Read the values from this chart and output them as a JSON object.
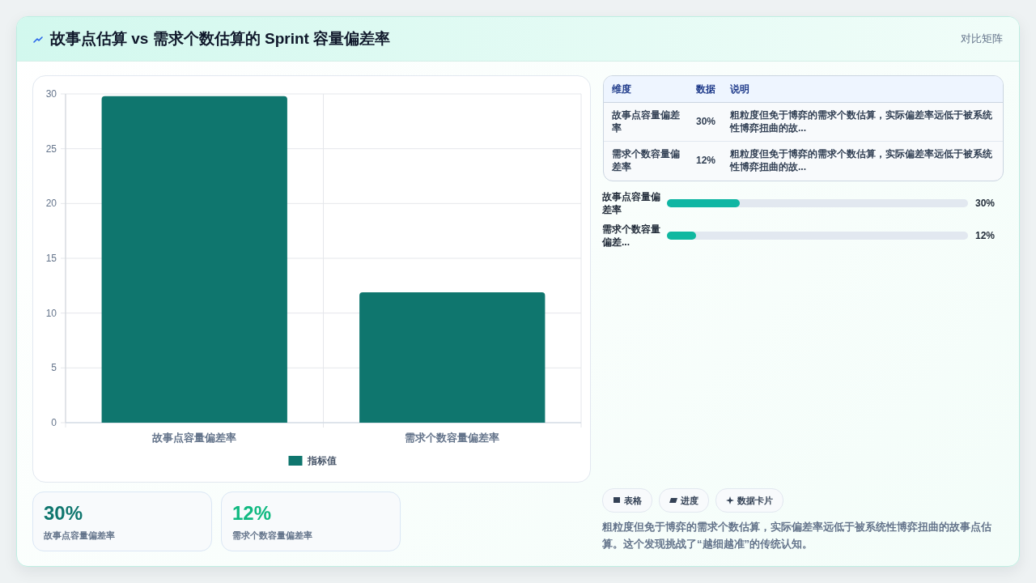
{
  "chart_data": [
    {
      "type": "other",
      "title": "故事点估算 vs 需求个数估算的 Sprint 容量偏差率",
      "subtitle": "对比矩阵"
    },
    {
      "type": "bar",
      "categories": [
        "故事点容量偏差率",
        "需求个数容量偏差率"
      ],
      "series": [
        {
          "name": "指标值",
          "color": "#0f766e",
          "values": [
            29.8,
            11.9
          ]
        }
      ],
      "ylim": [
        0,
        30
      ],
      "yticks": [
        0,
        5,
        10,
        15,
        20,
        25,
        30
      ],
      "grid": true,
      "legend": "bottom"
    },
    {
      "type": "other",
      "annotations": [
        "维度",
        "数据",
        "说明",
        "故事点容量偏差率",
        "30%",
        "粗粒度但免于博弈的需求个数估算，实际偏差率远低于被系统性博弈扭曲的故...",
        "需求个数容量偏差率",
        "12%",
        "粗粒度但免于博弈的需求个数估算，实际偏差率远低于被系统性博弈扭曲的故..."
      ]
    },
    {
      "type": "bar",
      "orientation": "horizontal",
      "categories": [
        "故事点容量偏差率",
        "需求个数容量偏差..."
      ],
      "values": [
        30,
        12
      ],
      "value_labels": [
        "30%",
        "12%"
      ],
      "xlim": [
        0,
        124
      ],
      "colors": [
        "#0fb6a3",
        "#10b8a0"
      ]
    },
    {
      "type": "other",
      "categories": [
        "故事点容量偏差率",
        "需求个数容量偏差率"
      ],
      "value_labels": [
        "30%",
        "12%"
      ]
    },
    {
      "type": "other",
      "annotations": [
        "表格",
        "进度",
        "数据卡片",
        "粗粒度但免于博弈的需求个数估算，实际偏差率远低于被系统性博弈扭曲的故事点估算。这个发现挑战了“越细越准”的传统认知。"
      ]
    }
  ]
}
